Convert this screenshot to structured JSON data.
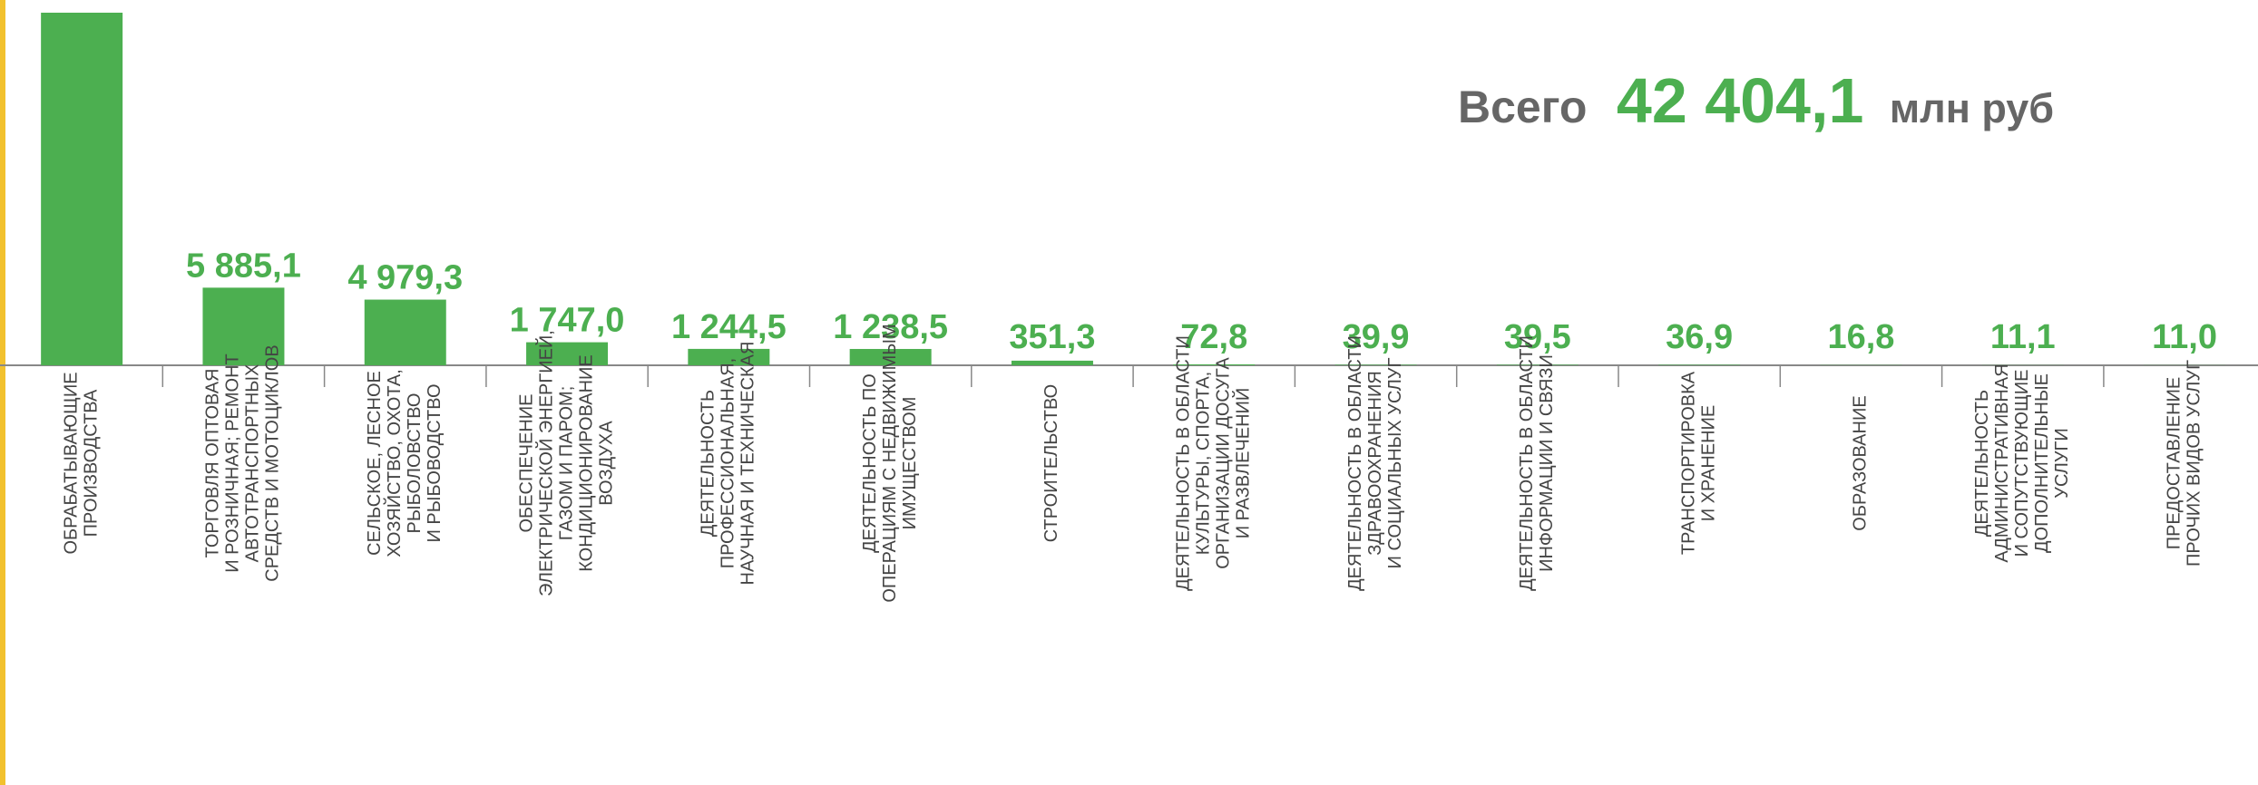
{
  "chart_data": {
    "type": "bar",
    "total_label": "Всего",
    "total": "42 404,1",
    "total_unit": "млн руб",
    "color": "#4caf50",
    "categories": [
      [
        "ОБРАБАТЫВАЮЩИЕ",
        "ПРОИЗВОДСТВА"
      ],
      [
        "ТОРГОВЛЯ ОПТОВАЯ",
        "И РОЗНИЧНАЯ; РЕМОНТ",
        "АВТОТРАНСПОРТНЫХ",
        "СРЕДСТВ И МОТОЦИКЛОВ"
      ],
      [
        "СЕЛЬСКОЕ, ЛЕСНОЕ",
        "ХОЗЯЙСТВО, ОХОТА,",
        "РЫБОЛОВСТВО",
        "И РЫБОВОДСТВО"
      ],
      [
        "ОБЕСПЕЧЕНИЕ",
        "ЭЛЕКТРИЧЕСКОЙ ЭНЕРГИЕЙ,",
        "ГАЗОМ И ПАРОМ;",
        "КОНДИЦИОНИРОВАНИЕ",
        "ВОЗДУХА"
      ],
      [
        "ДЕЯТЕЛЬНОСТЬ",
        "ПРОФЕССИОНАЛЬНАЯ,",
        "НАУЧНАЯ И ТЕХНИЧЕСКАЯ"
      ],
      [
        "ДЕЯТЕЛЬНОСТЬ ПО",
        "ОПЕРАЦИЯМ С НЕДВИЖИМЫМ",
        "ИМУЩЕСТВОМ"
      ],
      [
        "СТРОИТЕЛЬСТВО"
      ],
      [
        "ДЕЯТЕЛЬНОСТЬ В ОБЛАСТИ",
        "КУЛЬТУРЫ, СПОРТА,",
        "ОРГАНИЗАЦИИ ДОСУГА",
        "И РАЗВЛЕЧЕНИЙ"
      ],
      [
        "ДЕЯТЕЛЬНОСТЬ В ОБЛАСТИ",
        "ЗДРАВООХРАНЕНИЯ",
        "И СОЦИАЛЬНЫХ УСЛУГ"
      ],
      [
        "ДЕЯТЕЛЬНОСТЬ В ОБЛАСТИ",
        "ИНФОРМАЦИИ И СВЯЗИ"
      ],
      [
        "ТРАНСПОРТИРОВКА",
        "И ХРАНЕНИЕ"
      ],
      [
        "ОБРАЗОВАНИЕ"
      ],
      [
        "ДЕЯТЕЛЬНОСТЬ",
        "АДМИНИСТРАТИВНАЯ",
        "И СОПУТСТВУЮЩИЕ",
        "ДОПОЛНИТЕЛЬНЫЕ",
        "УСЛУГИ"
      ],
      [
        "ПРЕДОСТАВЛЕНИЕ",
        "ПРОЧИХ ВИДОВ УСЛУГ"
      ]
    ],
    "values": [
      26730.4,
      5885.1,
      4979.3,
      1747.0,
      1244.5,
      1238.5,
      351.3,
      72.8,
      39.9,
      39.5,
      36.9,
      16.8,
      11.1,
      11.0
    ],
    "value_labels": [
      null,
      "5 885,1",
      "4 979,3",
      "1 747,0",
      "1 244,5",
      "1 238,5",
      "351,3",
      "72,8",
      "39,9",
      "39,5",
      "36,9",
      "16,8",
      "11,1",
      "11,0"
    ]
  }
}
